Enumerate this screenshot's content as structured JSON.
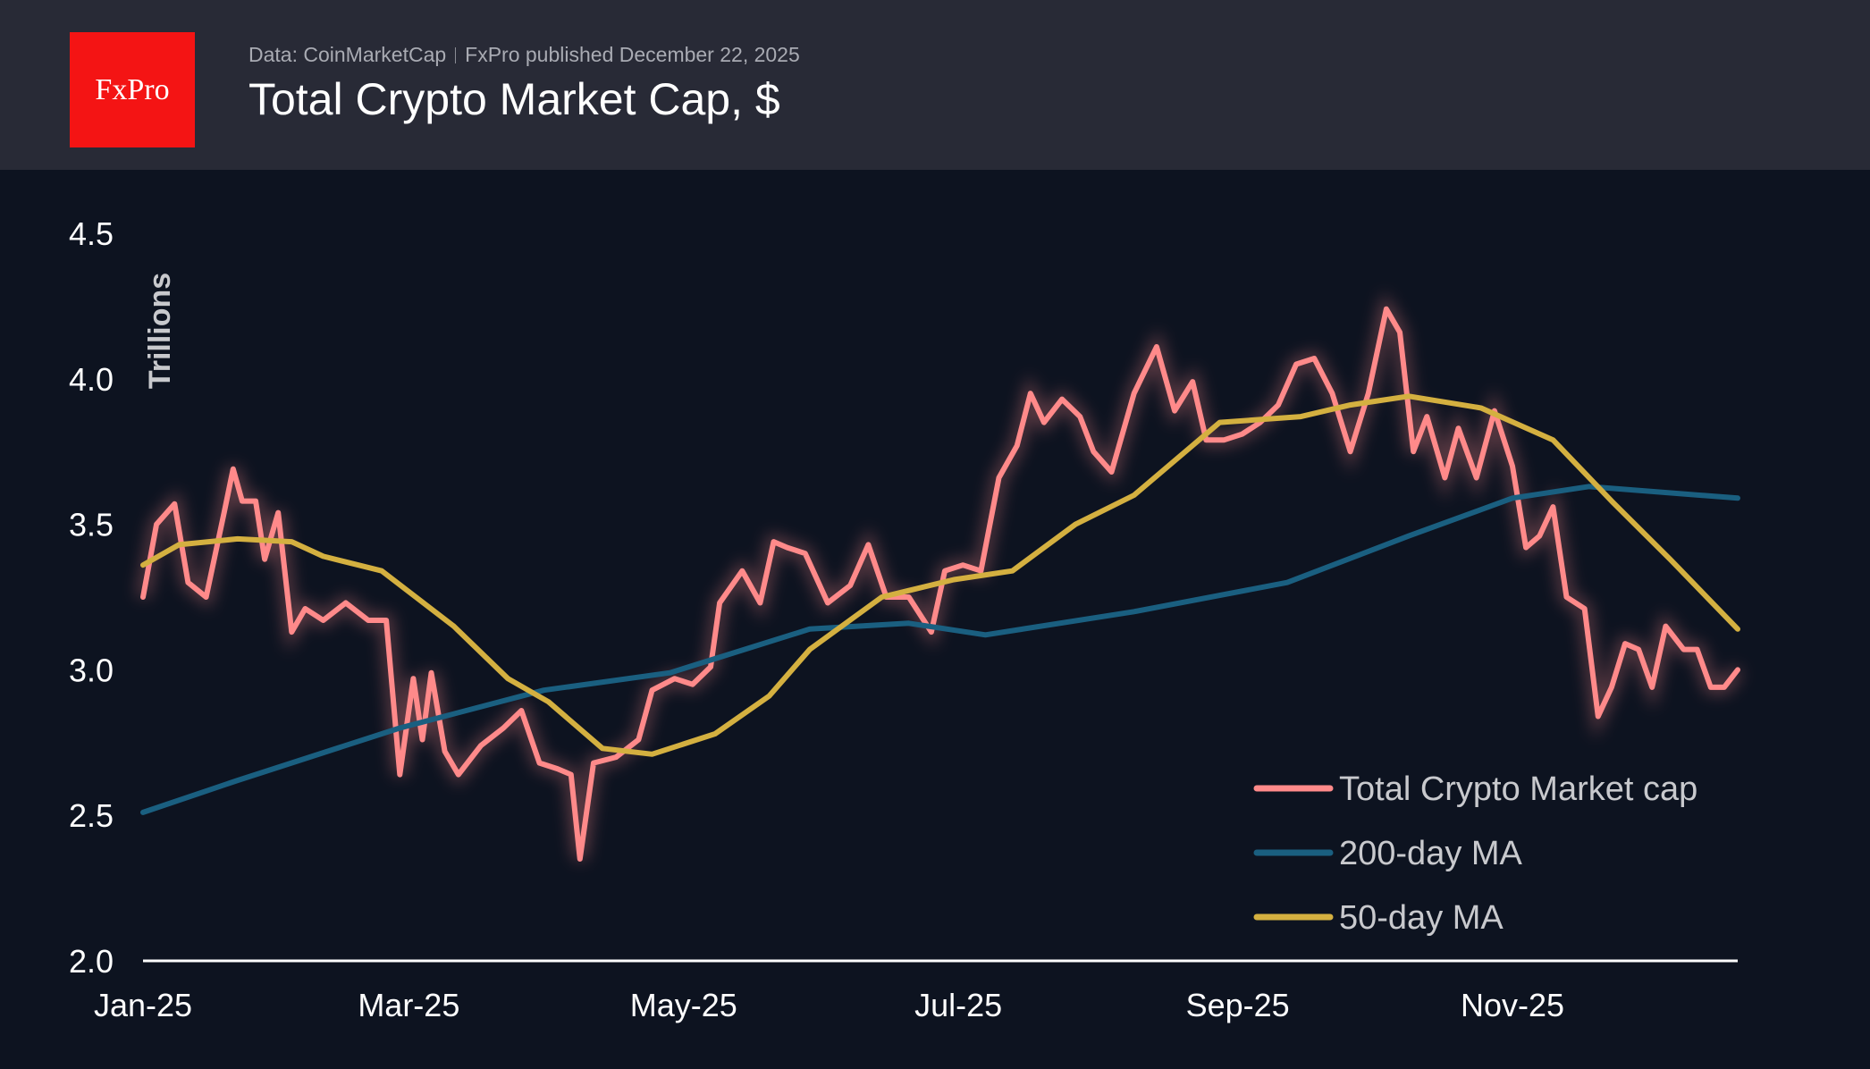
{
  "header": {
    "logo_text": "FxPro",
    "source": "Data: CoinMarketCap",
    "published": "FxPro published December 22, 2025",
    "title": "Total Crypto Market Cap, $"
  },
  "chart_data": {
    "type": "line",
    "title": "Total Crypto Market Cap, $",
    "ylabel": "Trillions",
    "xlabel": "",
    "ylim": [
      2.0,
      4.5
    ],
    "yticks": [
      "2.0",
      "2.5",
      "3.0",
      "3.5",
      "4.0",
      "4.5"
    ],
    "xlim": [
      "2025-01-01",
      "2025-12-21"
    ],
    "xticks": [
      {
        "date": "2025-01-01",
        "label": "Jan-25"
      },
      {
        "date": "2025-03-01",
        "label": "Mar-25"
      },
      {
        "date": "2025-05-01",
        "label": "May-25"
      },
      {
        "date": "2025-07-01",
        "label": "Jul-25"
      },
      {
        "date": "2025-09-01",
        "label": "Sep-25"
      },
      {
        "date": "2025-11-01",
        "label": "Nov-25"
      }
    ],
    "grid": false,
    "legend_position": "bottom-right",
    "series": [
      {
        "name": "Total Crypto Market cap",
        "color": "#ff8a8a",
        "points": [
          [
            "2025-01-01",
            3.25
          ],
          [
            "2025-01-04",
            3.5
          ],
          [
            "2025-01-08",
            3.57
          ],
          [
            "2025-01-11",
            3.3
          ],
          [
            "2025-01-15",
            3.25
          ],
          [
            "2025-01-19",
            3.54
          ],
          [
            "2025-01-21",
            3.69
          ],
          [
            "2025-01-23",
            3.58
          ],
          [
            "2025-01-26",
            3.58
          ],
          [
            "2025-01-28",
            3.38
          ],
          [
            "2025-01-31",
            3.54
          ],
          [
            "2025-02-03",
            3.13
          ],
          [
            "2025-02-06",
            3.21
          ],
          [
            "2025-02-10",
            3.17
          ],
          [
            "2025-02-15",
            3.23
          ],
          [
            "2025-02-20",
            3.17
          ],
          [
            "2025-02-24",
            3.17
          ],
          [
            "2025-02-27",
            2.64
          ],
          [
            "2025-03-02",
            2.97
          ],
          [
            "2025-03-04",
            2.76
          ],
          [
            "2025-03-06",
            2.99
          ],
          [
            "2025-03-09",
            2.72
          ],
          [
            "2025-03-12",
            2.64
          ],
          [
            "2025-03-17",
            2.74
          ],
          [
            "2025-03-22",
            2.8
          ],
          [
            "2025-03-26",
            2.86
          ],
          [
            "2025-03-30",
            2.68
          ],
          [
            "2025-04-03",
            2.66
          ],
          [
            "2025-04-06",
            2.64
          ],
          [
            "2025-04-08",
            2.35
          ],
          [
            "2025-04-11",
            2.68
          ],
          [
            "2025-04-16",
            2.7
          ],
          [
            "2025-04-21",
            2.76
          ],
          [
            "2025-04-24",
            2.93
          ],
          [
            "2025-04-29",
            2.97
          ],
          [
            "2025-05-03",
            2.95
          ],
          [
            "2025-05-07",
            3.01
          ],
          [
            "2025-05-09",
            3.23
          ],
          [
            "2025-05-14",
            3.34
          ],
          [
            "2025-05-18",
            3.23
          ],
          [
            "2025-05-21",
            3.44
          ],
          [
            "2025-05-24",
            3.42
          ],
          [
            "2025-05-28",
            3.4
          ],
          [
            "2025-06-02",
            3.23
          ],
          [
            "2025-06-07",
            3.29
          ],
          [
            "2025-06-11",
            3.43
          ],
          [
            "2025-06-15",
            3.25
          ],
          [
            "2025-06-20",
            3.25
          ],
          [
            "2025-06-25",
            3.13
          ],
          [
            "2025-06-28",
            3.34
          ],
          [
            "2025-07-02",
            3.36
          ],
          [
            "2025-07-06",
            3.34
          ],
          [
            "2025-07-10",
            3.66
          ],
          [
            "2025-07-14",
            3.77
          ],
          [
            "2025-07-17",
            3.95
          ],
          [
            "2025-07-20",
            3.85
          ],
          [
            "2025-07-24",
            3.93
          ],
          [
            "2025-07-28",
            3.87
          ],
          [
            "2025-07-31",
            3.75
          ],
          [
            "2025-08-04",
            3.68
          ],
          [
            "2025-08-09",
            3.95
          ],
          [
            "2025-08-14",
            4.11
          ],
          [
            "2025-08-18",
            3.89
          ],
          [
            "2025-08-22",
            3.99
          ],
          [
            "2025-08-25",
            3.79
          ],
          [
            "2025-08-29",
            3.79
          ],
          [
            "2025-09-02",
            3.81
          ],
          [
            "2025-09-06",
            3.85
          ],
          [
            "2025-09-10",
            3.91
          ],
          [
            "2025-09-14",
            4.05
          ],
          [
            "2025-09-18",
            4.07
          ],
          [
            "2025-09-22",
            3.95
          ],
          [
            "2025-09-26",
            3.75
          ],
          [
            "2025-09-30",
            3.95
          ],
          [
            "2025-10-04",
            4.24
          ],
          [
            "2025-10-07",
            4.16
          ],
          [
            "2025-10-10",
            3.75
          ],
          [
            "2025-10-13",
            3.87
          ],
          [
            "2025-10-17",
            3.66
          ],
          [
            "2025-10-20",
            3.83
          ],
          [
            "2025-10-24",
            3.66
          ],
          [
            "2025-10-28",
            3.89
          ],
          [
            "2025-11-01",
            3.7
          ],
          [
            "2025-11-04",
            3.42
          ],
          [
            "2025-11-07",
            3.46
          ],
          [
            "2025-11-10",
            3.56
          ],
          [
            "2025-11-13",
            3.25
          ],
          [
            "2025-11-17",
            3.21
          ],
          [
            "2025-11-20",
            2.84
          ],
          [
            "2025-11-23",
            2.94
          ],
          [
            "2025-11-26",
            3.09
          ],
          [
            "2025-11-29",
            3.07
          ],
          [
            "2025-12-02",
            2.94
          ],
          [
            "2025-12-05",
            3.15
          ],
          [
            "2025-12-09",
            3.07
          ],
          [
            "2025-12-12",
            3.07
          ],
          [
            "2025-12-15",
            2.94
          ],
          [
            "2025-12-18",
            2.94
          ],
          [
            "2025-12-21",
            3.0
          ]
        ]
      },
      {
        "name": "200-day MA",
        "color": "#1a5f80",
        "points": [
          [
            "2025-01-01",
            2.51
          ],
          [
            "2025-01-22",
            2.62
          ],
          [
            "2025-02-27",
            2.8
          ],
          [
            "2025-03-31",
            2.93
          ],
          [
            "2025-04-28",
            2.99
          ],
          [
            "2025-05-29",
            3.14
          ],
          [
            "2025-06-20",
            3.16
          ],
          [
            "2025-07-07",
            3.12
          ],
          [
            "2025-08-09",
            3.2
          ],
          [
            "2025-09-12",
            3.3
          ],
          [
            "2025-10-09",
            3.46
          ],
          [
            "2025-11-01",
            3.59
          ],
          [
            "2025-11-18",
            3.63
          ],
          [
            "2025-12-21",
            3.59
          ]
        ]
      },
      {
        "name": "50-day MA",
        "color": "#d4b040",
        "points": [
          [
            "2025-01-01",
            3.36
          ],
          [
            "2025-01-09",
            3.43
          ],
          [
            "2025-01-22",
            3.45
          ],
          [
            "2025-02-03",
            3.44
          ],
          [
            "2025-02-10",
            3.39
          ],
          [
            "2025-02-23",
            3.34
          ],
          [
            "2025-03-11",
            3.15
          ],
          [
            "2025-03-23",
            2.97
          ],
          [
            "2025-04-01",
            2.89
          ],
          [
            "2025-04-13",
            2.73
          ],
          [
            "2025-04-24",
            2.71
          ],
          [
            "2025-05-08",
            2.78
          ],
          [
            "2025-05-20",
            2.91
          ],
          [
            "2025-05-29",
            3.07
          ],
          [
            "2025-06-14",
            3.25
          ],
          [
            "2025-06-30",
            3.31
          ],
          [
            "2025-07-13",
            3.34
          ],
          [
            "2025-07-27",
            3.5
          ],
          [
            "2025-08-09",
            3.6
          ],
          [
            "2025-08-28",
            3.85
          ],
          [
            "2025-09-15",
            3.87
          ],
          [
            "2025-09-26",
            3.91
          ],
          [
            "2025-10-09",
            3.94
          ],
          [
            "2025-10-25",
            3.9
          ],
          [
            "2025-11-10",
            3.79
          ],
          [
            "2025-11-23",
            3.58
          ],
          [
            "2025-12-06",
            3.38
          ],
          [
            "2025-12-21",
            3.14
          ]
        ]
      }
    ]
  }
}
